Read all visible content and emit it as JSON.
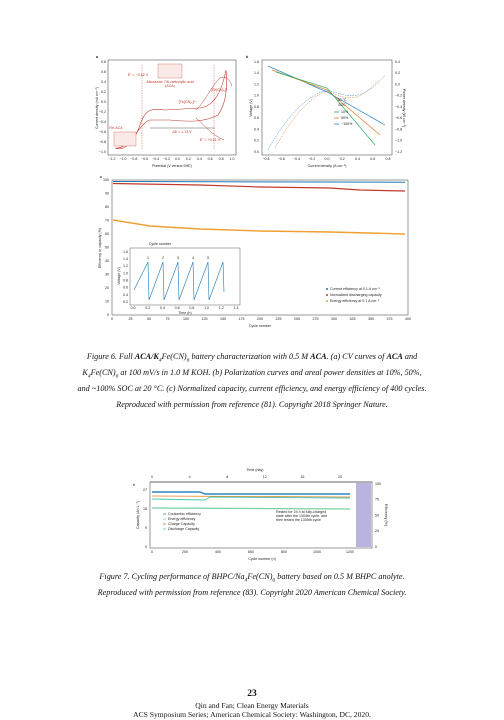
{
  "figure6": {
    "a": {
      "letter": "a",
      "yticks": [
        "0.8",
        "0.6",
        "0.4",
        "0.2",
        "0.0",
        "−0.2",
        "−0.4",
        "−0.6",
        "−0.8",
        "−1.0"
      ],
      "xticks": [
        "−1.2",
        "−1.0",
        "−0.8",
        "−0.6",
        "−0.4",
        "−0.2",
        "0.0",
        "0.2",
        "0.4",
        "0.6",
        "0.8",
        "1.0"
      ],
      "ylabel": "Current density (mA cm⁻²)",
      "xlabel": "Potential (V versus SHE)",
      "notes": [
        "Alloxazine 7/8-carboxylic acid",
        "(ACA)",
        "ΔE = 1.13 V",
        "[Fe(CN)₆]³⁻",
        "[Fe(CN)₆]⁴⁻",
        "Re-ACA",
        "E° = −0.62 V",
        "E° = +0.51 V"
      ]
    },
    "b": {
      "letter": "b",
      "yticks": [
        "1.6",
        "1.4",
        "1.2",
        "1.0",
        "0.8",
        "0.6",
        "0.4",
        "0.2",
        "0.0"
      ],
      "y2ticks": [
        "0.4",
        "0.2",
        "0.0",
        "−0.2",
        "−0.4",
        "−0.6",
        "−0.8",
        "−1.0",
        "−1.2"
      ],
      "xticks": [
        "−0.8",
        "−0.6",
        "−0.4",
        "−0.2",
        "0.0",
        "0.2",
        "0.4",
        "0.6",
        "0.8"
      ],
      "ylabel": "Voltage (V)",
      "y2label": "Power density (W cm⁻²)",
      "xlabel": "Current density (A cm⁻²)",
      "notes": [
        "20 °C",
        "SOC"
      ],
      "legend": [
        "10%",
        "50%",
        "~100%"
      ]
    },
    "c": {
      "letter": "c",
      "yticks": [
        "0",
        "10",
        "20",
        "30",
        "40",
        "50",
        "60",
        "70",
        "80",
        "90",
        "100"
      ],
      "xticks": [
        "0",
        "25",
        "50",
        "75",
        "100",
        "125",
        "150",
        "175",
        "200",
        "225",
        "250",
        "275",
        "300",
        "325",
        "350",
        "375",
        "400"
      ],
      "ylabel": "Efficiency or capacity (%)",
      "xlabel": "Cycle number",
      "legend": [
        "Current efficiency at 0.1 A cm⁻²",
        "Normalized discharging capacity",
        "Energy efficiency at 0.1 A cm⁻²"
      ],
      "inset": {
        "title": "Cycle number",
        "cycles": [
          "1",
          "2",
          "3",
          "4",
          "5"
        ],
        "ylabel": "Voltage (V)",
        "xlabel": "Time (h)",
        "yticks": [
          "1.6",
          "1.4",
          "1.2",
          "1.0",
          "0.8",
          "0.6",
          "0.4",
          "0.2"
        ],
        "xticks": [
          "0.0",
          "0.2",
          "0.4",
          "0.6",
          "0.8",
          "1.0",
          "1.2",
          "1.4"
        ]
      }
    },
    "caption": [
      [
        {
          "t": "Figure 6. Full "
        },
        {
          "t": "ACA/K",
          "s": "b"
        },
        {
          "t": "4",
          "s": "sub"
        },
        {
          "t": "Fe(CN)"
        },
        {
          "t": "6",
          "s": "sub"
        },
        {
          "t": " battery characterization with 0.5 M "
        },
        {
          "t": "ACA",
          "s": "b"
        },
        {
          "t": ". (a) CV curves of "
        },
        {
          "t": "ACA",
          "s": "b"
        },
        {
          "t": " and"
        }
      ],
      [
        {
          "t": "K"
        },
        {
          "t": "4",
          "s": "sub"
        },
        {
          "t": "Fe(CN)"
        },
        {
          "t": "6",
          "s": "sub"
        },
        {
          "t": " at 100 mV/s in 1.0 M KOH. (b) Polarization curves and areal power densities at 10%, 50%,"
        }
      ],
      [
        {
          "t": "and ~100% SOC at 20 °C. (c) Normalized capacity, current efficiency, and energy efficiency of 400 cycles."
        }
      ],
      [
        {
          "t": "Reproduced with permission from reference (81). Copyright 2018 Springer Nature."
        }
      ]
    ]
  },
  "figure7": {
    "letter": "e",
    "toplabel": "Time (day)",
    "topticks": [
      "0",
      "4",
      "8",
      "12",
      "16",
      "20"
    ],
    "xticks": [
      "0",
      "200",
      "400",
      "600",
      "800",
      "1000",
      "1200"
    ],
    "xlabel": "Cycle number (n)",
    "yticks": [
      "27",
      "18",
      "9",
      "0"
    ],
    "ylabel": "Capacity (Ah L⁻¹)",
    "y2ticks": [
      "100",
      "75",
      "50",
      "25",
      "0"
    ],
    "y2label": "Efficiency (%)",
    "legend": [
      "Coulombic efficiency",
      "Energy efficiency",
      "Charge Capacity",
      "Discharge Capacity"
    ],
    "note": [
      "Rested for 24 h at fully-charged",
      "state after the 1304th cycle, and",
      "then tested the 1305th cycle"
    ],
    "caption": [
      [
        {
          "t": "Figure 7. Cycling performance of BHPC/Na"
        },
        {
          "t": "4",
          "s": "sub"
        },
        {
          "t": "Fe(CN)"
        },
        {
          "t": "6",
          "s": "sub"
        },
        {
          "t": " battery based on 0.5 M BHPC anolyte."
        }
      ],
      [
        {
          "t": "Reproduced with permission from reference (83). Copyright 2020 American Chemical Society."
        }
      ]
    ]
  },
  "footer": {
    "page": "23",
    "lines": [
      "Qin and Fan; Clean Energy Materials",
      "ACS Symposium Series; American Chemical Society: Washington, DC, 2020."
    ]
  }
}
